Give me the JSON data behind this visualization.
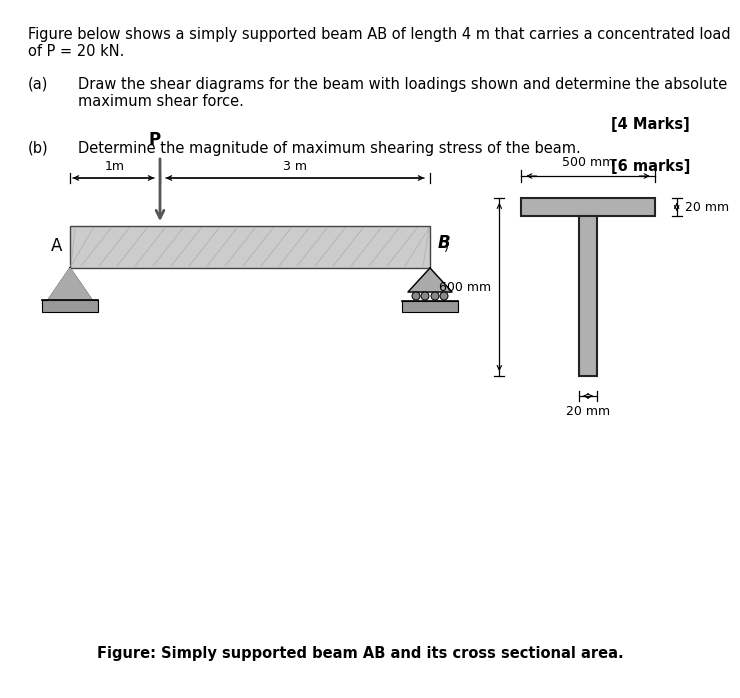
{
  "bg_color": "#ffffff",
  "title_line1": "Figure below shows a simply supported beam AB of length 4 m that carries a concentrated load",
  "title_line2": "of P = 20 kN.",
  "part_a_label": "(a)",
  "part_a_text": "Draw the shear diagrams for the beam with loadings shown and determine the absolute",
  "part_a_text2": "maximum shear force.",
  "part_a_marks": "[4 Marks]",
  "part_b_label": "(b)",
  "part_b_text": "Determine the magnitude of maximum shearing stress of the beam.",
  "part_b_marks": "[6 marks]",
  "figure_caption": "Figure: Simply supported beam AB and its cross sectional area.",
  "beam_color": "#cccccc",
  "beam_edge_color": "#444444",
  "support_color": "#aaaaaa",
  "t_section_fill": "#b0b0b0",
  "t_section_edge": "#222222",
  "dim_500": "500 mm",
  "dim_600": "600 mm",
  "dim_20_top": "20 mm",
  "dim_20_bot": "20 mm",
  "label_1m": "1m",
  "label_3m": "3 m",
  "label_P": "P",
  "label_A": "A",
  "label_B": "B",
  "text_fontsize": 10.5,
  "small_fontsize": 9.0
}
